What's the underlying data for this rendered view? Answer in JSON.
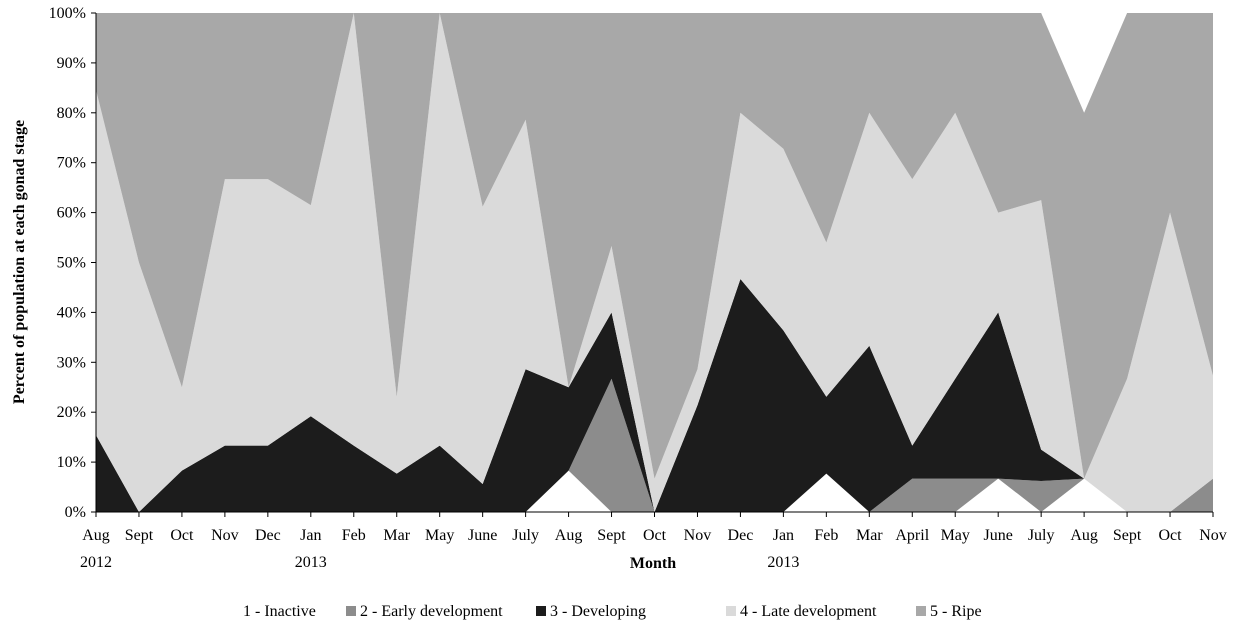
{
  "chart_data": {
    "type": "area",
    "stacked": true,
    "percent_stacked": true,
    "xlabel": "Month",
    "ylabel": "Percent of population  at each gonad stage",
    "ylim": [
      0,
      100
    ],
    "y_ticks": [
      "0%",
      "10%",
      "20%",
      "30%",
      "40%",
      "50%",
      "60%",
      "70%",
      "80%",
      "90%",
      "100%"
    ],
    "categories": [
      "Aug",
      "Sept",
      "Oct",
      "Nov",
      "Dec",
      "Jan",
      "Feb",
      "Mar",
      "May",
      "June",
      "July",
      "Aug",
      "Sept",
      "Oct",
      "Nov",
      "Dec",
      "Jan",
      "Feb",
      "Mar",
      "April",
      "May",
      "June",
      "July",
      "Aug",
      "Sept",
      "Oct",
      "Nov"
    ],
    "year_labels": [
      {
        "index": 0,
        "label": "2012"
      },
      {
        "index": 5,
        "label": "2013"
      },
      {
        "index": 16,
        "label": "2013"
      }
    ],
    "series": [
      {
        "name": "1 - Inactive",
        "color": "#ffffff",
        "values": [
          0,
          0,
          0,
          0,
          0,
          0,
          0,
          0,
          0,
          0,
          0,
          8.3,
          0,
          0,
          0,
          0,
          0,
          7.7,
          0,
          0,
          0,
          6.7,
          0,
          6.7,
          0,
          0,
          0
        ]
      },
      {
        "name": "2 - Early development",
        "color": "#8c8c8c",
        "values": [
          0,
          0,
          0,
          0,
          0,
          0,
          0,
          0,
          0,
          0,
          0,
          0,
          26.7,
          0,
          0,
          0,
          0,
          0,
          0,
          6.7,
          6.7,
          0,
          6.2,
          0,
          0,
          0,
          6.7
        ]
      },
      {
        "name": "3 - Developing",
        "color": "#1c1c1c",
        "values": [
          15.4,
          0,
          8.3,
          13.3,
          13.3,
          19.2,
          13.3,
          7.7,
          13.3,
          5.6,
          28.6,
          16.7,
          13.3,
          0,
          21.4,
          46.7,
          36.4,
          15.4,
          33.3,
          6.6,
          20,
          33.3,
          6.3,
          0,
          0,
          0,
          0
        ]
      },
      {
        "name": "4 - Late development",
        "color": "#dadada",
        "values": [
          69.2,
          50,
          16.7,
          53.4,
          53.4,
          42.3,
          86.7,
          15.4,
          86.7,
          55.6,
          50,
          0,
          13.3,
          6.7,
          7.2,
          33.3,
          36.4,
          30.9,
          46.7,
          53.4,
          53.3,
          20,
          50,
          0,
          26.7,
          60,
          20.6
        ]
      },
      {
        "name": "5 - Ripe",
        "color": "#a8a8a8",
        "values": [
          15.4,
          50,
          75,
          33.3,
          33.3,
          38.5,
          0,
          76.9,
          0,
          38.8,
          21.4,
          75,
          46.7,
          93.3,
          71.4,
          20,
          27.2,
          46,
          20,
          33.3,
          20,
          40,
          37.5,
          73.3,
          73.3,
          40,
          72.7
        ]
      }
    ],
    "legend_position": "bottom",
    "grid": false
  }
}
